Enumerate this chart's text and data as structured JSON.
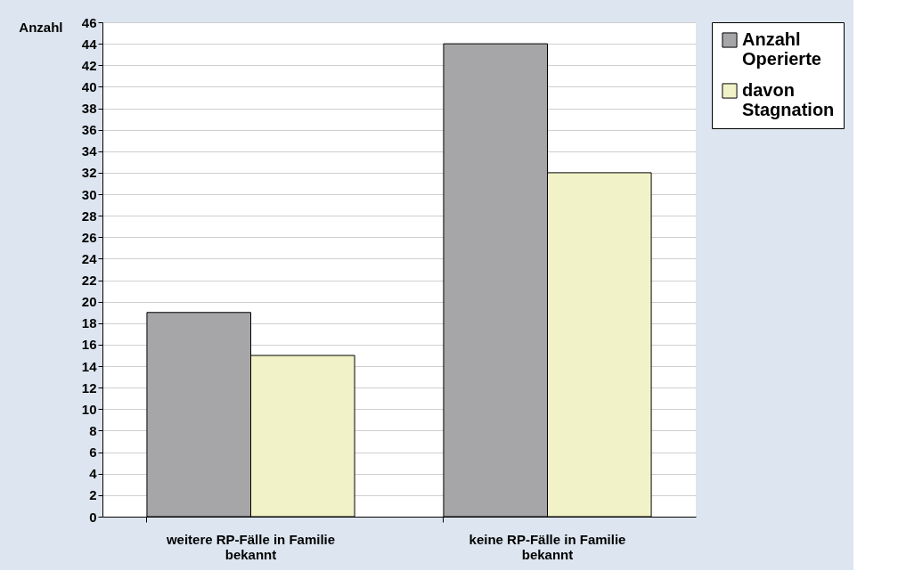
{
  "chart_data": {
    "type": "bar",
    "ylabel": "Anzahl",
    "categories": [
      "weitere RP-Fälle in Familie bekannt",
      "keine RP-Fälle in Familie bekannt"
    ],
    "series": [
      {
        "name": "Anzahl Operierte",
        "color": "#a6a6a8",
        "values": [
          19,
          44
        ]
      },
      {
        "name": "davon Stagnation",
        "color": "#f2f2c8",
        "values": [
          15,
          32
        ]
      }
    ],
    "ylim": [
      0,
      46
    ],
    "yticks": [
      0,
      2,
      4,
      6,
      8,
      10,
      12,
      14,
      16,
      18,
      20,
      22,
      24,
      26,
      28,
      30,
      32,
      34,
      36,
      38,
      40,
      42,
      44,
      46
    ],
    "grid": "y",
    "legend": "top right"
  }
}
